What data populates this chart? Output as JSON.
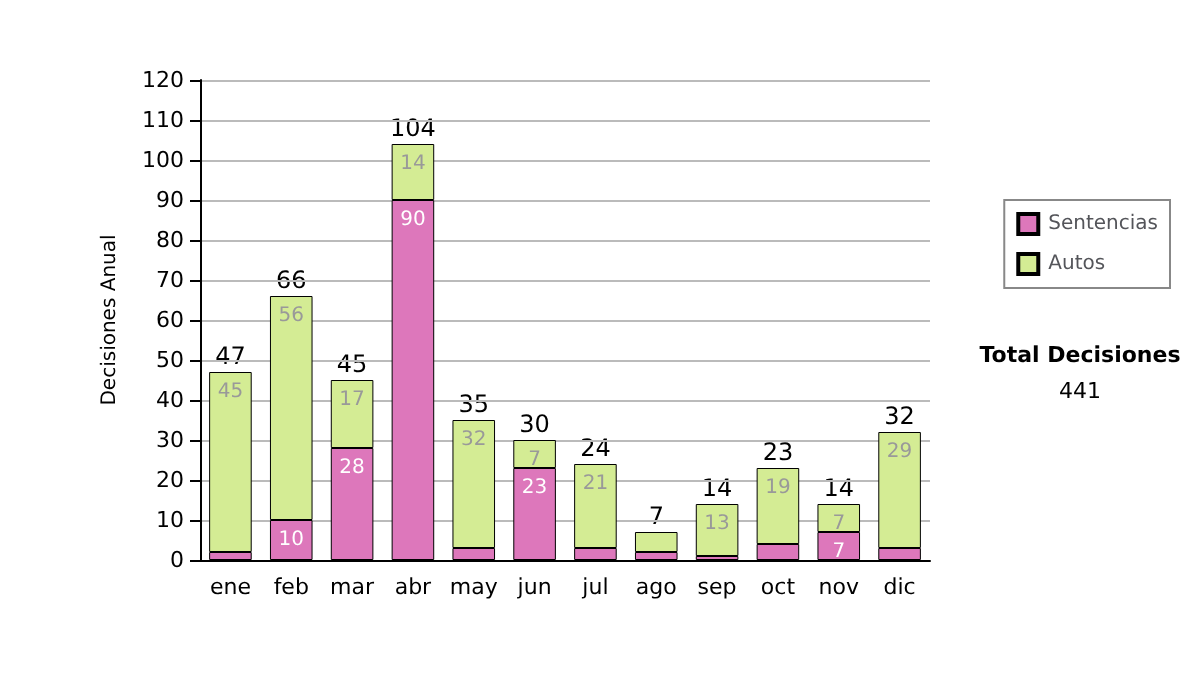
{
  "chart_data": {
    "type": "bar",
    "stacked": true,
    "ylabel": "Decisiones Anual",
    "categories": [
      "ene",
      "feb",
      "mar",
      "abr",
      "may",
      "jun",
      "jul",
      "ago",
      "sep",
      "oct",
      "nov",
      "dic"
    ],
    "series": [
      {
        "name": "Sentencias",
        "color": "#dd77bb",
        "values": [
          2,
          10,
          28,
          90,
          3,
          23,
          3,
          2,
          1,
          4,
          7,
          3
        ],
        "value_labels": [
          null,
          "10",
          "28",
          "90",
          null,
          "23",
          null,
          null,
          null,
          null,
          "7",
          null
        ]
      },
      {
        "name": "Autos",
        "color": "#d4ec94",
        "values": [
          45,
          56,
          17,
          14,
          32,
          7,
          21,
          5,
          13,
          19,
          7,
          29
        ],
        "value_labels": [
          "45",
          "56",
          "17",
          "14",
          "32",
          "7",
          "21",
          null,
          "13",
          "19",
          "7",
          "29"
        ]
      }
    ],
    "totals": [
      "47",
      "66",
      "45",
      "104",
      "35",
      "30",
      "24",
      "7",
      "14",
      "23",
      "14",
      "32"
    ],
    "ylim": [
      0,
      120
    ],
    "yticks": [
      0,
      10,
      20,
      30,
      40,
      50,
      60,
      70,
      80,
      90,
      100,
      110,
      120
    ],
    "grid": "y",
    "legend": "right",
    "annotations": [
      "Total Decisiones",
      "441"
    ]
  }
}
